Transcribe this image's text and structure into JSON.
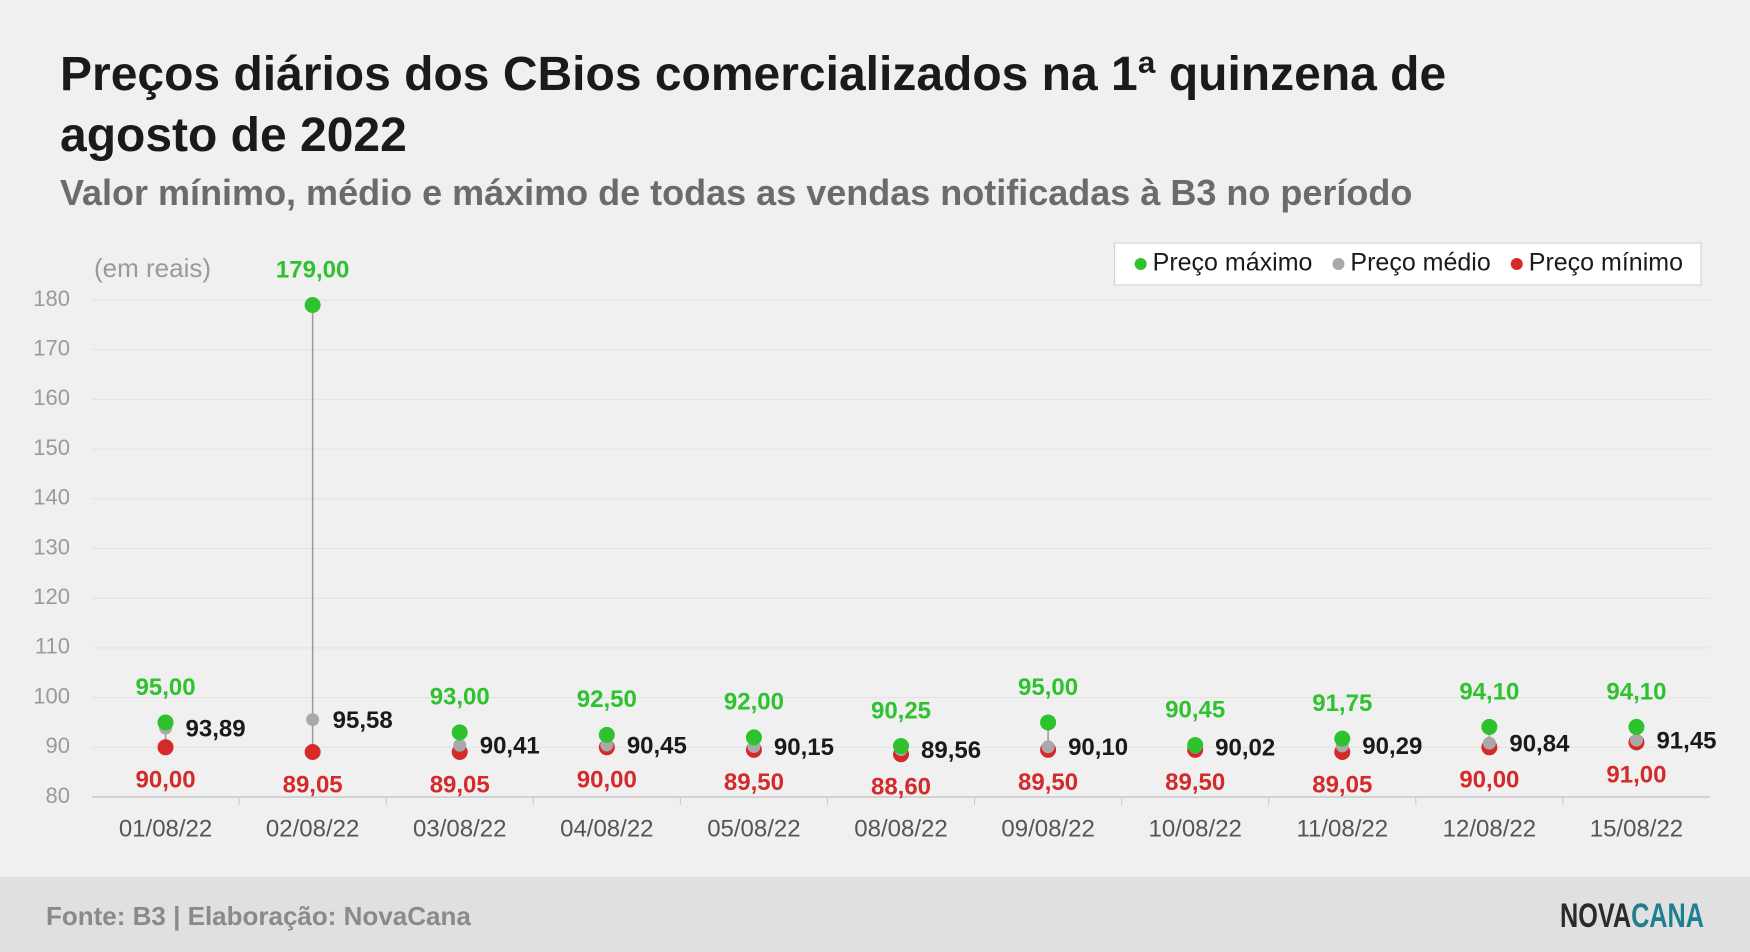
{
  "chart_data": {
    "type": "dotrange",
    "title": "Preços diários dos CBios comercializados na 1ª quinzena de agosto de 2022",
    "subtitle": "Valor mínimo, médio e máximo de todas as vendas notificadas à B3 no período",
    "y_label": "(em reais)",
    "categories": [
      "01/08/22",
      "02/08/22",
      "03/08/22",
      "04/08/22",
      "05/08/22",
      "08/08/22",
      "09/08/22",
      "10/08/22",
      "11/08/22",
      "12/08/22",
      "15/08/22"
    ],
    "series": [
      {
        "name": "Preço máximo",
        "color": "#2ec22e",
        "label_color": "#2ec22e",
        "values": [
          95.0,
          179.0,
          93.0,
          92.5,
          92.0,
          90.25,
          95.0,
          90.45,
          91.75,
          94.1,
          94.1
        ],
        "value_labels": [
          "95,00",
          "179,00",
          "93,00",
          "92,50",
          "92,00",
          "90,25",
          "95,00",
          "90,45",
          "91,75",
          "94,10",
          "94,10"
        ]
      },
      {
        "name": "Preço médio",
        "color": "#a9a9a9",
        "label_color": "#1a1a1a",
        "values": [
          93.89,
          95.58,
          90.41,
          90.45,
          90.15,
          89.56,
          90.1,
          90.02,
          90.29,
          90.84,
          91.45
        ],
        "value_labels": [
          "93,89",
          "95,58",
          "90,41",
          "90,45",
          "90,15",
          "89,56",
          "90,10",
          "90,02",
          "90,29",
          "90,84",
          "91,45"
        ]
      },
      {
        "name": "Preço mínimo",
        "color": "#d42a2a",
        "label_color": "#d42a2a",
        "values": [
          90.0,
          89.05,
          89.05,
          90.0,
          89.5,
          88.6,
          89.5,
          89.5,
          89.05,
          90.0,
          91.0
        ],
        "value_labels": [
          "90,00",
          "89,05",
          "89,05",
          "90,00",
          "89,50",
          "88,60",
          "89,50",
          "89,50",
          "89,05",
          "90,00",
          "91,00"
        ]
      }
    ],
    "ylim": [
      80,
      180
    ],
    "yticks": [
      80,
      90,
      100,
      110,
      120,
      130,
      140,
      150,
      160,
      170,
      180
    ],
    "grid": true,
    "legend": "top-right"
  },
  "footer": {
    "source": "Fonte: B3 | Elaboração: NovaCana",
    "logo": [
      "NOVA",
      "CANA"
    ]
  }
}
